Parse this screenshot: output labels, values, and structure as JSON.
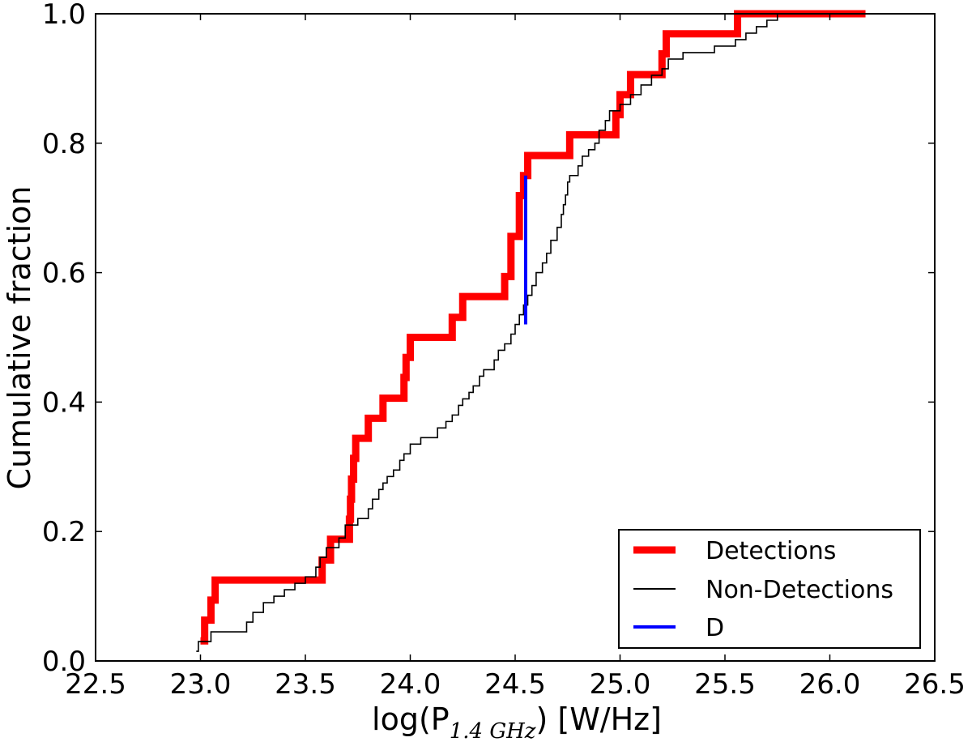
{
  "chart_data": {
    "type": "line",
    "title": "",
    "xlabel_main": "log(P",
    "xlabel_sub": "1.4 GHz",
    "xlabel_unit": ") [W/Hz]",
    "ylabel": "Cumulative fraction",
    "xlim": [
      22.5,
      26.5
    ],
    "ylim": [
      0.0,
      1.0
    ],
    "xticks": [
      22.5,
      23.0,
      23.5,
      24.0,
      24.5,
      25.0,
      25.5,
      26.0,
      26.5
    ],
    "xtick_labels": [
      "22.5",
      "23.0",
      "23.5",
      "24.0",
      "24.5",
      "25.0",
      "25.5",
      "26.0",
      "26.5"
    ],
    "yticks": [
      0.0,
      0.2,
      0.4,
      0.6,
      0.8,
      1.0
    ],
    "ytick_labels": [
      "0.0",
      "0.2",
      "0.4",
      "0.6",
      "0.8",
      "1.0"
    ],
    "grid": false,
    "legend_position": "bottom-right",
    "series": [
      {
        "name": "Detections",
        "color": "#ff0000",
        "style": "step-thick",
        "x": [
          23.0,
          23.02,
          23.05,
          23.07,
          23.5,
          23.58,
          23.62,
          23.7,
          23.71,
          23.715,
          23.72,
          23.73,
          23.74,
          23.8,
          23.87,
          23.97,
          23.98,
          24.0,
          24.2,
          24.25,
          24.45,
          24.48,
          24.52,
          24.54,
          24.56,
          24.57,
          24.76,
          24.78,
          24.98,
          25.0,
          25.05,
          25.2,
          25.22,
          25.53,
          25.56,
          26.17
        ],
        "y": [
          0.031,
          0.063,
          0.094,
          0.125,
          0.125,
          0.156,
          0.188,
          0.188,
          0.219,
          0.25,
          0.281,
          0.313,
          0.344,
          0.375,
          0.406,
          0.438,
          0.469,
          0.5,
          0.531,
          0.563,
          0.594,
          0.656,
          0.719,
          0.75,
          0.781,
          0.781,
          0.813,
          0.813,
          0.844,
          0.875,
          0.906,
          0.938,
          0.969,
          0.969,
          1.0,
          1.0
        ]
      },
      {
        "name": "Non-Detections",
        "color": "#000000",
        "style": "step-thin",
        "x": [
          22.98,
          22.99,
          23.05,
          23.22,
          23.25,
          23.3,
          23.35,
          23.4,
          23.45,
          23.5,
          23.55,
          23.57,
          23.6,
          23.66,
          23.69,
          23.75,
          23.8,
          23.82,
          23.85,
          23.87,
          23.89,
          23.92,
          23.95,
          23.97,
          24.0,
          24.05,
          24.13,
          24.17,
          24.2,
          24.23,
          24.25,
          24.28,
          24.3,
          24.33,
          24.35,
          24.4,
          24.42,
          24.45,
          24.48,
          24.5,
          24.52,
          24.54,
          24.56,
          24.58,
          24.6,
          24.63,
          24.65,
          24.67,
          24.7,
          24.72,
          24.73,
          24.74,
          24.75,
          24.76,
          24.8,
          24.82,
          24.85,
          24.88,
          24.9,
          24.93,
          24.95,
          25.0,
          25.05,
          25.1,
          25.15,
          25.2,
          25.23,
          25.3,
          25.45,
          25.55,
          25.6,
          25.65,
          25.7,
          25.75
        ],
        "y": [
          0.015,
          0.03,
          0.045,
          0.06,
          0.075,
          0.09,
          0.1,
          0.11,
          0.12,
          0.13,
          0.145,
          0.16,
          0.175,
          0.19,
          0.21,
          0.22,
          0.235,
          0.25,
          0.265,
          0.275,
          0.285,
          0.295,
          0.31,
          0.32,
          0.335,
          0.345,
          0.36,
          0.37,
          0.38,
          0.395,
          0.405,
          0.415,
          0.425,
          0.44,
          0.45,
          0.465,
          0.48,
          0.49,
          0.505,
          0.52,
          0.535,
          0.55,
          0.565,
          0.58,
          0.6,
          0.615,
          0.63,
          0.65,
          0.67,
          0.69,
          0.705,
          0.72,
          0.74,
          0.75,
          0.765,
          0.78,
          0.79,
          0.8,
          0.82,
          0.835,
          0.85,
          0.86,
          0.875,
          0.89,
          0.905,
          0.915,
          0.93,
          0.94,
          0.95,
          0.96,
          0.97,
          0.98,
          0.99,
          1.0
        ]
      },
      {
        "name": "D",
        "color": "#0000ff",
        "style": "segment",
        "x": [
          24.55,
          24.55
        ],
        "y": [
          0.52,
          0.75
        ]
      }
    ]
  }
}
